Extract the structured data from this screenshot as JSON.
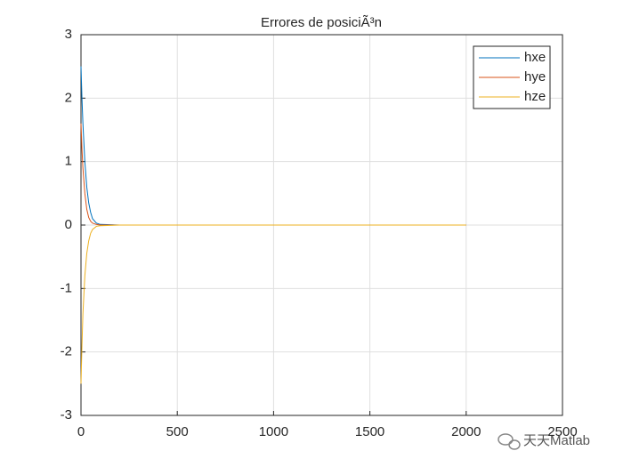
{
  "chart_data": {
    "type": "line",
    "title": "Errores de posiciÃ³n",
    "x": [
      0,
      5,
      10,
      20,
      30,
      40,
      50,
      60,
      80,
      100,
      200,
      500,
      1000,
      1500,
      2000
    ],
    "series": [
      {
        "name": "hxe",
        "color": "#0072bd",
        "values": [
          2.5,
          2.0,
          1.6,
          1.0,
          0.6,
          0.35,
          0.2,
          0.1,
          0.03,
          0.01,
          0,
          0,
          0,
          0,
          0
        ]
      },
      {
        "name": "hye",
        "color": "#d95319",
        "values": [
          1.6,
          1.2,
          0.9,
          0.5,
          0.25,
          0.12,
          0.06,
          0.03,
          0.01,
          0,
          0,
          0,
          0,
          0,
          0
        ]
      },
      {
        "name": "hze",
        "color": "#edb120",
        "values": [
          -2.5,
          -1.9,
          -1.4,
          -0.8,
          -0.45,
          -0.25,
          -0.13,
          -0.07,
          -0.02,
          -0.01,
          0,
          0,
          0,
          0,
          0
        ]
      }
    ],
    "xlim": [
      0,
      2500
    ],
    "xticks": [
      0,
      500,
      1000,
      1500,
      2000,
      2500
    ],
    "ylim": [
      -3,
      3
    ],
    "yticks": [
      -3,
      -2,
      -1,
      0,
      1,
      2,
      3
    ],
    "grid": true,
    "legend": "top-right",
    "watermark": "天天Matlab"
  }
}
